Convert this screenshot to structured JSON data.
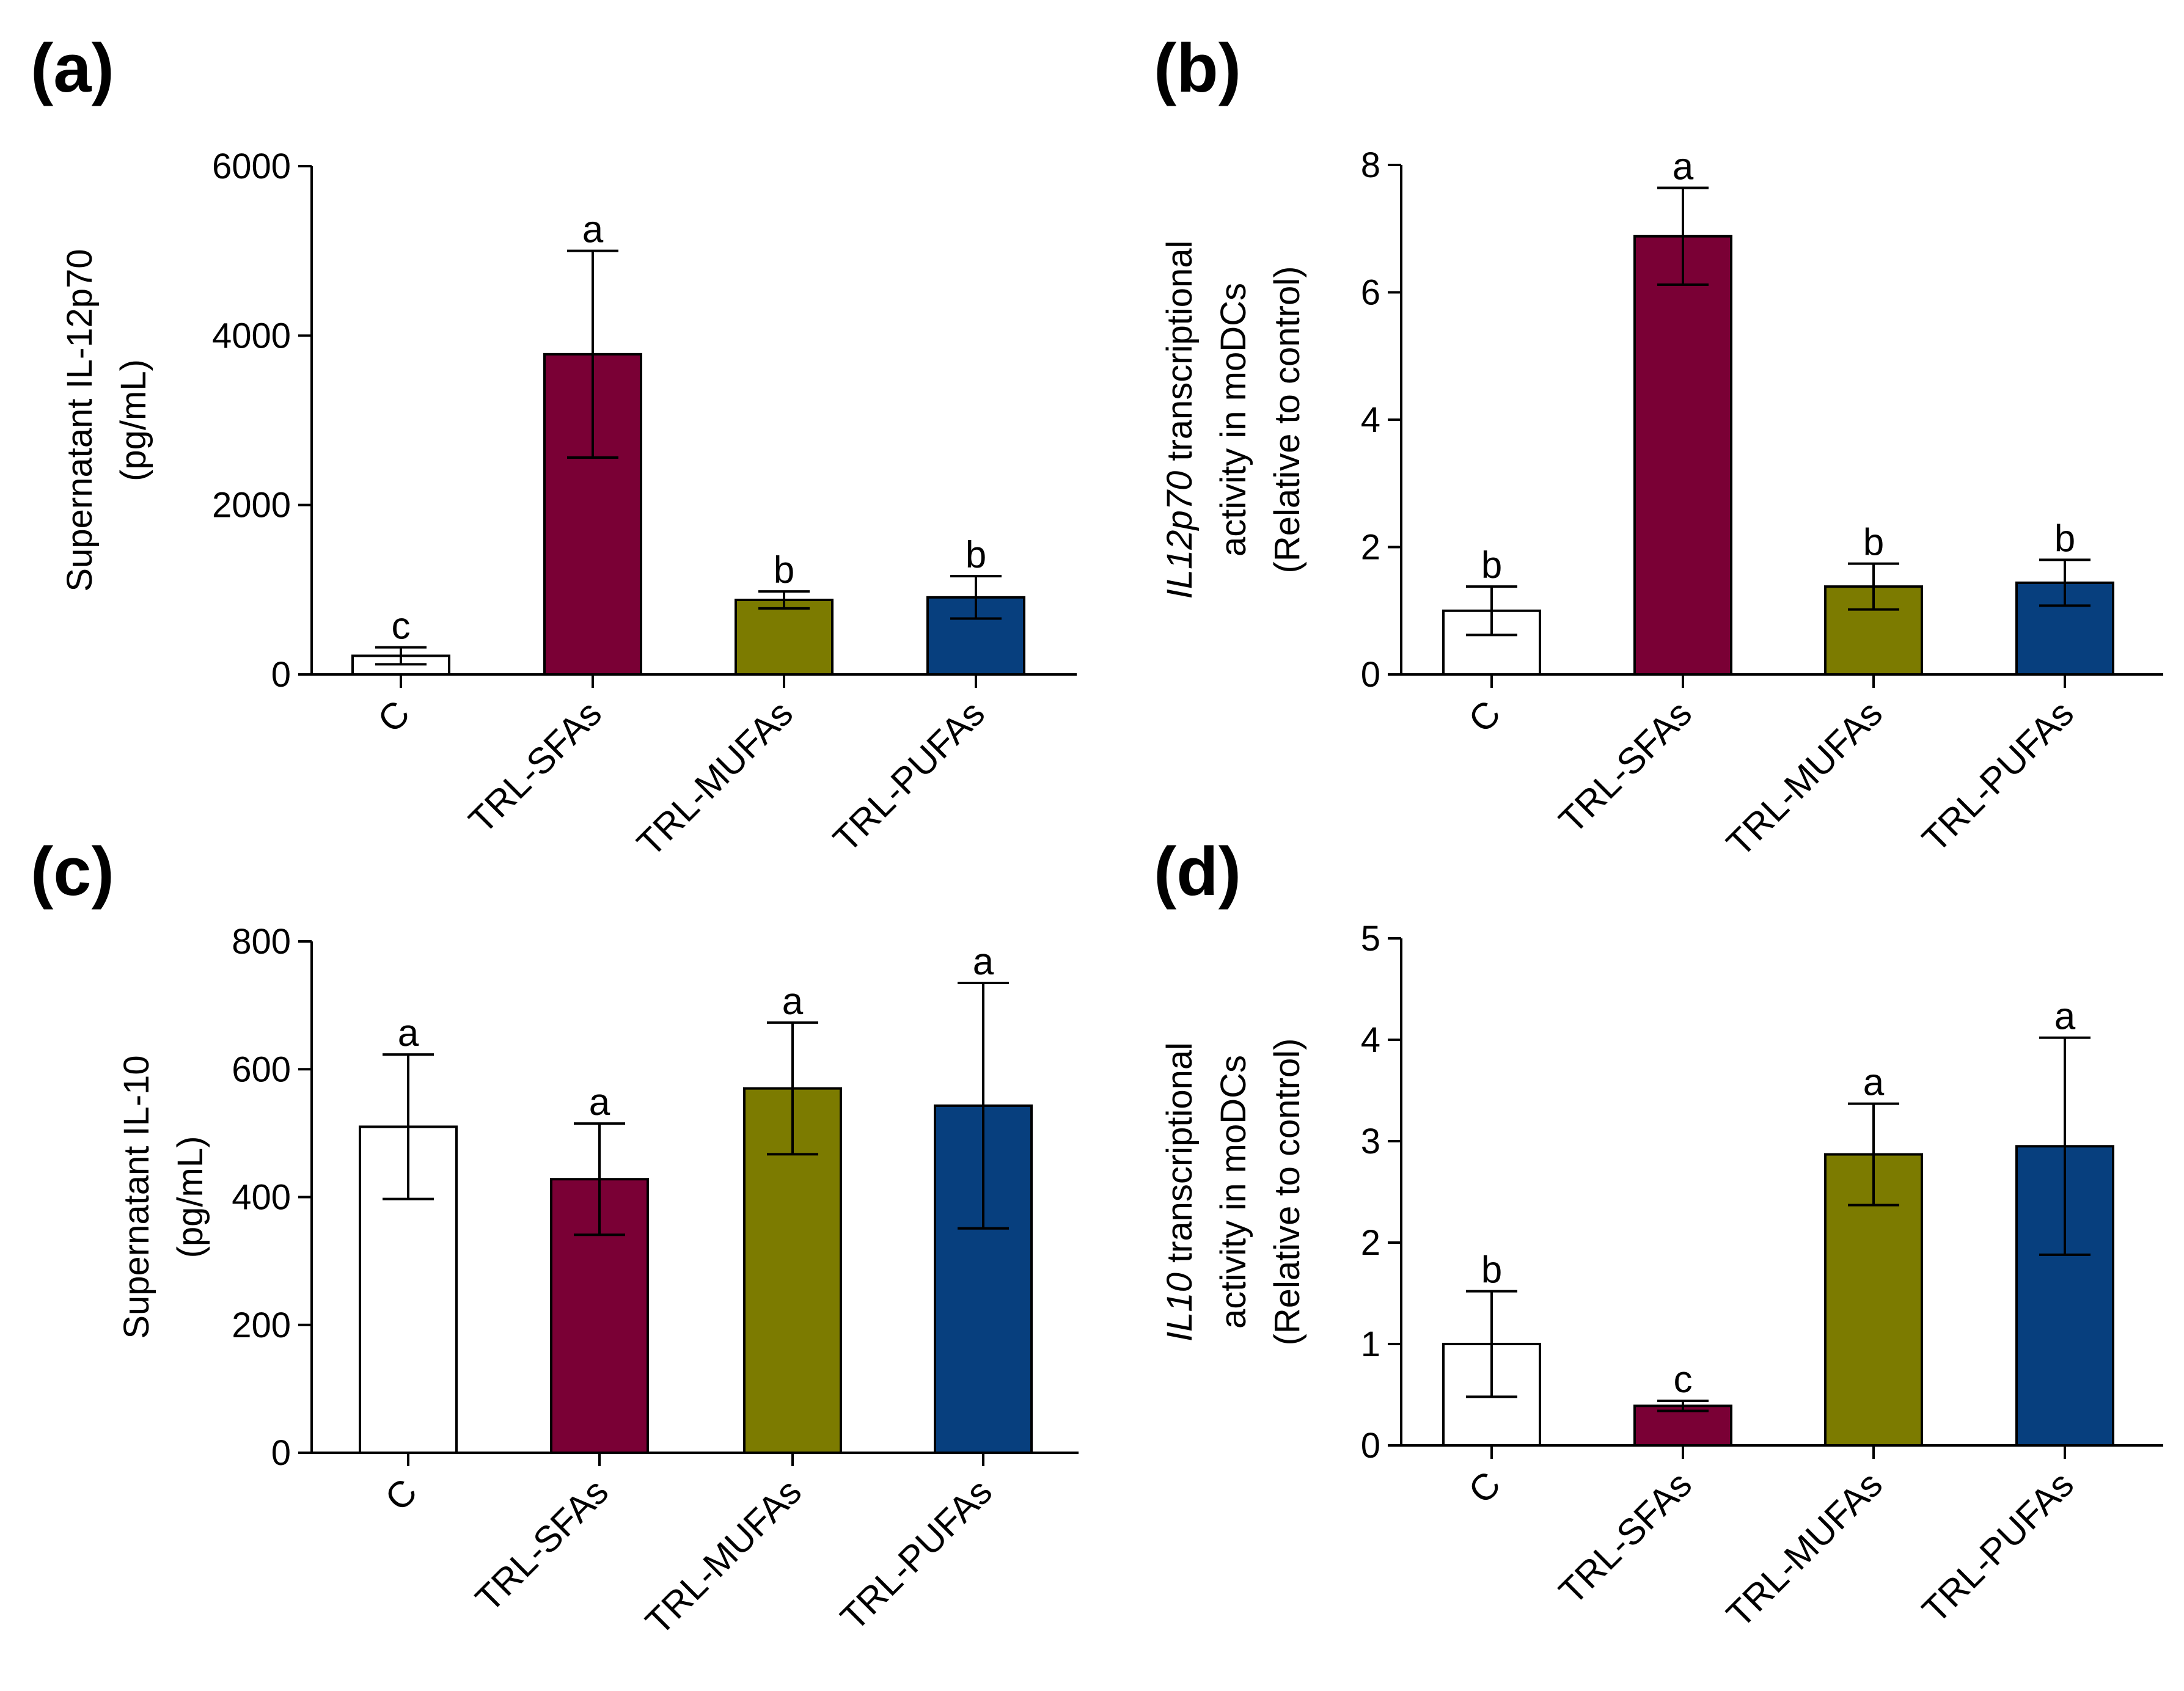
{
  "chart_data": [
    {
      "type": "bar",
      "panel": "(a)",
      "categories": [
        "C",
        "TRL-SFAs",
        "TRL-MUFAs",
        "TRL-PUFAs"
      ],
      "ylabel_lines": [
        [
          "Supernatant IL-12p70"
        ],
        [
          "(pg/mL)"
        ]
      ],
      "ylim": [
        0,
        6000
      ],
      "yticks": [
        0,
        2000,
        4000,
        6000
      ],
      "series": [
        {
          "name": "IL-12p70",
          "values": [
            220,
            3780,
            880,
            910
          ],
          "errors": [
            100,
            1220,
            100,
            250
          ],
          "letters": [
            "c",
            "a",
            "b",
            "b"
          ]
        }
      ]
    },
    {
      "type": "bar",
      "panel": "(b)",
      "categories": [
        "C",
        "TRL-SFAs",
        "TRL-MUFAs",
        "TRL-PUFAs"
      ],
      "ylabel_lines": [
        [
          {
            "text": "IL12p70",
            "italic": true
          },
          {
            "text": " transcriptional"
          }
        ],
        [
          "activity in moDCs"
        ],
        [
          "(Relative to control)"
        ]
      ],
      "ylim": [
        0,
        8
      ],
      "yticks": [
        0,
        2,
        4,
        6,
        8
      ],
      "series": [
        {
          "name": "IL12p70 transcriptional activity",
          "values": [
            1.0,
            6.88,
            1.38,
            1.44
          ],
          "errors": [
            0.38,
            0.76,
            0.36,
            0.36
          ],
          "letters": [
            "b",
            "a",
            "b",
            "b"
          ]
        }
      ]
    },
    {
      "type": "bar",
      "panel": "(c)",
      "categories": [
        "C",
        "TRL-SFAs",
        "TRL-MUFAs",
        "TRL-PUFAs"
      ],
      "ylabel_lines": [
        [
          "Supernatant IL-10"
        ],
        [
          "(pg/mL)"
        ]
      ],
      "ylim": [
        0,
        800
      ],
      "yticks": [
        0,
        200,
        400,
        600,
        800
      ],
      "series": [
        {
          "name": "IL-10",
          "values": [
            510,
            428,
            570,
            543
          ],
          "errors": [
            113,
            87,
            103,
            192
          ],
          "letters": [
            "a",
            "a",
            "a",
            "a"
          ]
        }
      ]
    },
    {
      "type": "bar",
      "panel": "(d)",
      "categories": [
        "C",
        "TRL-SFAs",
        "TRL-MUFAs",
        "TRL-PUFAs"
      ],
      "ylabel_lines": [
        [
          {
            "text": "IL10",
            "italic": true
          },
          {
            "text": " transcriptional"
          }
        ],
        [
          "activity in moDCs"
        ],
        [
          "(Relative to control)"
        ]
      ],
      "ylim": [
        0,
        5
      ],
      "yticks": [
        0,
        1,
        2,
        3,
        4,
        5
      ],
      "series": [
        {
          "name": "IL10 transcriptional activity",
          "values": [
            1.0,
            0.39,
            2.87,
            2.95
          ],
          "errors": [
            0.52,
            0.05,
            0.5,
            1.07
          ],
          "letters": [
            "b",
            "c",
            "a",
            "a"
          ]
        }
      ]
    }
  ],
  "bar_colors": [
    "#ffffff",
    "#7a0035",
    "#7c7b00",
    "#073f7e"
  ]
}
